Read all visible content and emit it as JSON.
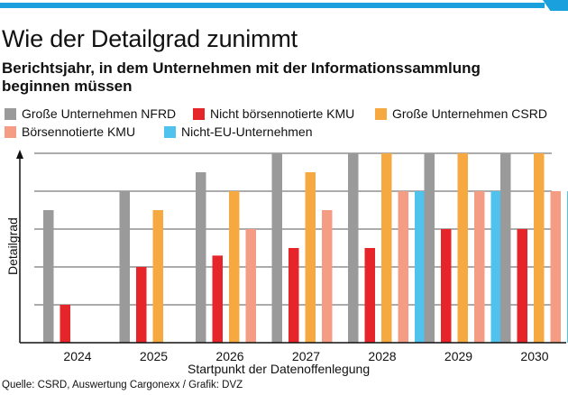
{
  "title": "Wie der Detailgrad zunimmt",
  "subtitle": "Berichtsjahr, in dem Unternehmen mit der Informationssammlung beginnen müssen",
  "footer": "Quelle: CSRD, Auswertung Cargonexx / Grafik: DVZ",
  "colors": {
    "accent": "#1aa0dc"
  },
  "chart_data": {
    "type": "bar",
    "xlabel": "Startpunkt der Datenoffenlegung",
    "ylabel": "Detailgrad",
    "ylim": [
      0,
      5
    ],
    "grid": true,
    "legend_position": "top",
    "categories": [
      "2024",
      "2025",
      "2026",
      "2027",
      "2028",
      "2029",
      "2030"
    ],
    "series": [
      {
        "name": "Große Unternehmen NFRD",
        "color": "#9a9a9a",
        "values": [
          3.5,
          4,
          4.5,
          5,
          5,
          5,
          5
        ]
      },
      {
        "name": "Nicht börsennotierte KMU",
        "color": "#e5252a",
        "values": [
          1,
          2,
          2.3,
          2.5,
          2.5,
          3,
          3
        ]
      },
      {
        "name": "Große Unternehmen CSRD",
        "color": "#f7a941",
        "values": [
          0,
          3.5,
          4,
          4.5,
          5,
          5,
          5
        ]
      },
      {
        "name": "Börsennotierte KMU",
        "color": "#f59c84",
        "values": [
          0,
          0,
          3,
          3.5,
          4,
          4,
          4
        ]
      },
      {
        "name": "Nicht-EU-Unternehmen",
        "color": "#4fc3ee",
        "values": [
          0,
          0,
          0,
          0,
          4,
          4,
          4
        ]
      }
    ]
  }
}
